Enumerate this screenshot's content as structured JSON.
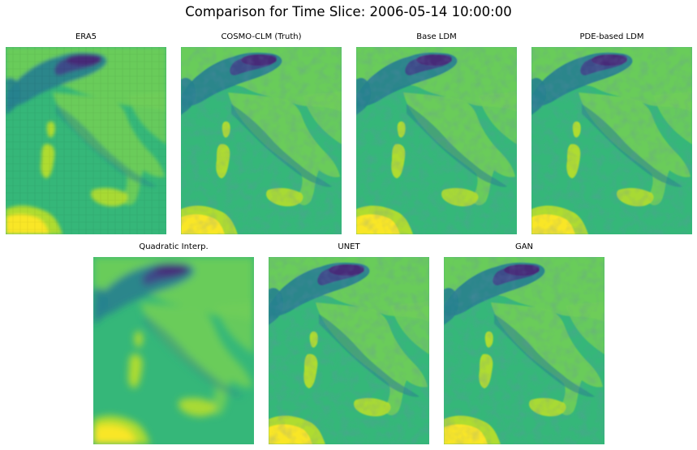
{
  "figure": {
    "title": "Comparison for Time Slice: 2006-05-14 10:00:00"
  },
  "panels": [
    {
      "label": "ERA5",
      "style": "coarse"
    },
    {
      "label": "COSMO-CLM (Truth)",
      "style": "fine"
    },
    {
      "label": "Base LDM",
      "style": "fine"
    },
    {
      "label": "PDE-based LDM",
      "style": "fine"
    },
    {
      "label": "Quadratic Interp.",
      "style": "smooth"
    },
    {
      "label": "UNET",
      "style": "fine"
    },
    {
      "label": "GAN",
      "style": "fine"
    }
  ],
  "colors": {
    "background": "#ffffff",
    "colormap": "viridis",
    "sea": "#35b779",
    "plain": "#6ece58",
    "high": "#b5de2b",
    "max": "#fde725",
    "mountain_mid": "#26828e",
    "mountain_dark": "#3e4989",
    "mountain_peak": "#482677"
  }
}
